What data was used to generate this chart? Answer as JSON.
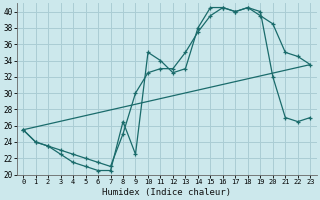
{
  "title": "",
  "xlabel": "Humidex (Indice chaleur)",
  "bg_color": "#cce8ec",
  "grid_color": "#aacdd4",
  "line_color": "#1a6b6b",
  "xlim": [
    -0.5,
    23.5
  ],
  "ylim": [
    20,
    41
  ],
  "xticks": [
    0,
    1,
    2,
    3,
    4,
    5,
    6,
    7,
    8,
    9,
    10,
    11,
    12,
    13,
    14,
    15,
    16,
    17,
    18,
    19,
    20,
    21,
    22,
    23
  ],
  "yticks": [
    20,
    22,
    24,
    26,
    28,
    30,
    32,
    34,
    36,
    38,
    40
  ],
  "line1_x": [
    0,
    1,
    2,
    3,
    4,
    5,
    6,
    7,
    8,
    9,
    10,
    11,
    12,
    13,
    14,
    15,
    16,
    17,
    18,
    19,
    20,
    21,
    22,
    23
  ],
  "line1_y": [
    25.5,
    24.0,
    23.5,
    22.5,
    21.5,
    21.0,
    20.5,
    20.5,
    26.5,
    22.5,
    35.0,
    34.0,
    32.5,
    33.0,
    38.0,
    40.5,
    40.5,
    40.0,
    40.5,
    39.5,
    38.5,
    35.0,
    34.5,
    33.5
  ],
  "line2_x": [
    0,
    1,
    2,
    3,
    4,
    5,
    6,
    7,
    8,
    9,
    10,
    11,
    12,
    13,
    14,
    15,
    16,
    17,
    18,
    19,
    20,
    21,
    22,
    23
  ],
  "line2_y": [
    25.5,
    24.0,
    23.5,
    23.0,
    22.5,
    22.0,
    21.5,
    21.0,
    25.0,
    30.0,
    32.5,
    33.0,
    33.0,
    35.0,
    37.5,
    39.5,
    40.5,
    40.0,
    40.5,
    40.0,
    32.0,
    27.0,
    26.5,
    27.0
  ],
  "line3_x": [
    0,
    23
  ],
  "line3_y": [
    25.5,
    33.5
  ]
}
